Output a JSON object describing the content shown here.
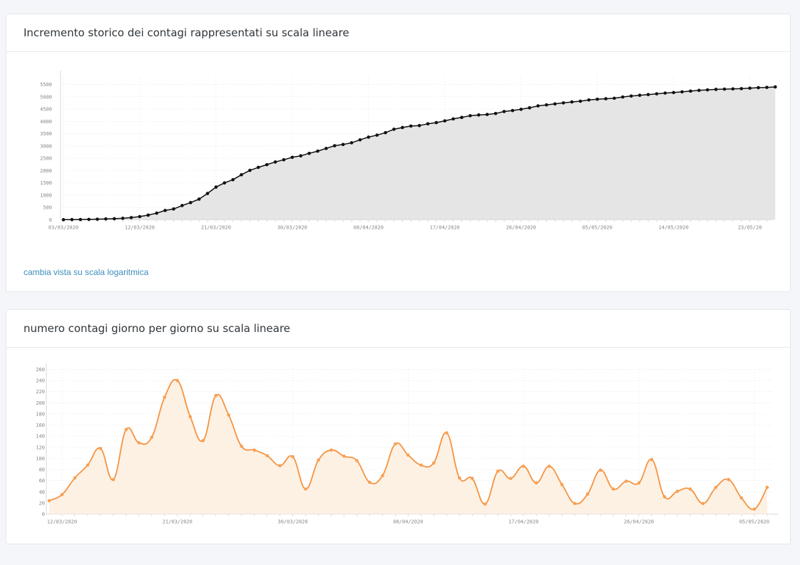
{
  "panels": [
    {
      "title": "Incremento storico dei contagi rappresentati su scala lineare",
      "link": "cambia vista su scala logaritmica"
    },
    {
      "title": "numero contagi giorno per giorno su scala lineare"
    }
  ],
  "chart_data": [
    {
      "type": "area",
      "style": "cumulative line with markers",
      "colors": {
        "line": "#111111",
        "fill": "#e5e5e5"
      },
      "xlabel": "",
      "ylabel": "",
      "x_start": "03/03/2020",
      "x_tick_labels": [
        "03/03/2020",
        "12/03/2020",
        "21/03/2020",
        "30/03/2020",
        "08/04/2020",
        "17/04/2020",
        "26/04/2020",
        "05/05/2020",
        "14/05/2020",
        "23/05/20"
      ],
      "y_ticks": [
        0,
        500,
        1000,
        1500,
        2000,
        2500,
        3000,
        3500,
        4000,
        4500,
        5000,
        5500
      ],
      "ylim": [
        0,
        5800
      ],
      "grid": true,
      "values": [
        5,
        8,
        12,
        18,
        25,
        35,
        45,
        60,
        90,
        130,
        190,
        270,
        380,
        440,
        580,
        700,
        840,
        1070,
        1330,
        1500,
        1630,
        1830,
        2010,
        2130,
        2240,
        2350,
        2440,
        2540,
        2600,
        2700,
        2790,
        2900,
        3010,
        3060,
        3130,
        3250,
        3360,
        3440,
        3540,
        3680,
        3750,
        3810,
        3830,
        3900,
        3950,
        4020,
        4100,
        4160,
        4230,
        4260,
        4280,
        4320,
        4400,
        4440,
        4490,
        4550,
        4630,
        4670,
        4710,
        4750,
        4790,
        4820,
        4870,
        4900,
        4920,
        4940,
        4990,
        5030,
        5060,
        5090,
        5120,
        5150,
        5170,
        5200,
        5230,
        5260,
        5280,
        5300,
        5310,
        5320,
        5330,
        5350,
        5370,
        5380,
        5400
      ]
    },
    {
      "type": "area",
      "style": "smoothed line with markers",
      "colors": {
        "line": "#f59342",
        "fill": "#fdf1e4",
        "marker": "#f7a155"
      },
      "xlabel": "",
      "ylabel": "",
      "x_start": "11/03/2020",
      "x_tick_labels": [
        "12/03/2020",
        "21/03/2020",
        "30/03/2020",
        "08/04/2020",
        "17/04/2020",
        "26/04/2020",
        "05/05/2020"
      ],
      "y_ticks": [
        0,
        20,
        40,
        60,
        80,
        100,
        120,
        140,
        160,
        180,
        200,
        220,
        240,
        260
      ],
      "ylim": [
        0,
        265
      ],
      "grid": true,
      "values": [
        24,
        35,
        65,
        88,
        118,
        62,
        152,
        128,
        138,
        210,
        240,
        175,
        132,
        213,
        178,
        122,
        115,
        105,
        87,
        103,
        45,
        97,
        115,
        104,
        96,
        57,
        69,
        126,
        106,
        88,
        92,
        146,
        65,
        64,
        18,
        77,
        64,
        86,
        56,
        86,
        53,
        19,
        36,
        79,
        45,
        59,
        56,
        98,
        31,
        41,
        45,
        19,
        48,
        62,
        29,
        9,
        48
      ]
    }
  ]
}
